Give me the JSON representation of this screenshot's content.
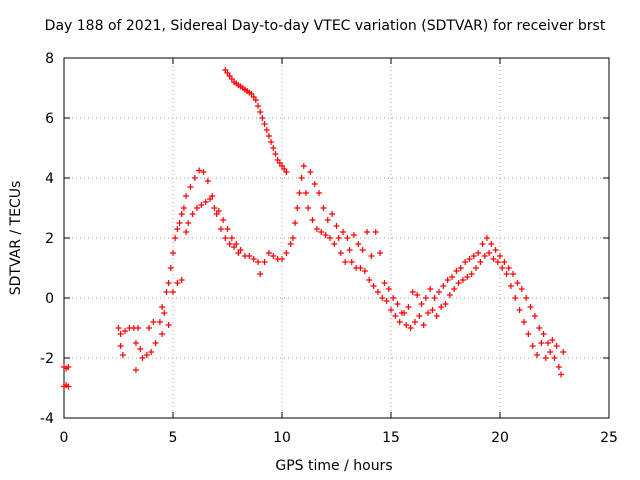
{
  "chart_data": {
    "type": "scatter",
    "title": "Day 188 of 2021, Sidereal Day-to-day VTEC variation (SDTVAR) for receiver brst",
    "xlabel": "GPS time / hours",
    "ylabel": "SDTVAR / TECUs",
    "xlim": [
      0,
      25
    ],
    "ylim": [
      -4,
      8
    ],
    "xticks": [
      "0",
      "5",
      "10",
      "15",
      "20",
      "25"
    ],
    "yticks": [
      "-4",
      "-2",
      "0",
      "2",
      "4",
      "6",
      "8"
    ],
    "grid": true,
    "marker": "+",
    "series_color": "#ff0000",
    "series": [
      {
        "name": "SDTVAR",
        "points": [
          [
            0.0,
            -2.3
          ],
          [
            0.1,
            -2.35
          ],
          [
            0.2,
            -2.3
          ],
          [
            0.0,
            -2.95
          ],
          [
            0.1,
            -2.9
          ],
          [
            0.2,
            -2.95
          ],
          [
            2.5,
            -1.0
          ],
          [
            2.6,
            -1.2
          ],
          [
            2.6,
            -1.6
          ],
          [
            2.7,
            -1.9
          ],
          [
            2.8,
            -1.1
          ],
          [
            3.0,
            -1.0
          ],
          [
            3.2,
            -1.0
          ],
          [
            3.3,
            -1.5
          ],
          [
            3.3,
            -2.4
          ],
          [
            3.4,
            -1.0
          ],
          [
            3.5,
            -1.7
          ],
          [
            3.6,
            -2.0
          ],
          [
            3.8,
            -1.9
          ],
          [
            3.9,
            -1.0
          ],
          [
            4.0,
            -1.8
          ],
          [
            4.1,
            -0.8
          ],
          [
            4.2,
            -1.5
          ],
          [
            4.4,
            -0.8
          ],
          [
            4.5,
            -0.3
          ],
          [
            4.5,
            -1.2
          ],
          [
            4.6,
            -0.5
          ],
          [
            4.7,
            0.2
          ],
          [
            4.8,
            -0.9
          ],
          [
            4.8,
            0.5
          ],
          [
            4.9,
            1.0
          ],
          [
            5.0,
            0.2
          ],
          [
            5.0,
            1.5
          ],
          [
            5.1,
            2.0
          ],
          [
            5.2,
            0.5
          ],
          [
            5.2,
            2.3
          ],
          [
            5.3,
            2.5
          ],
          [
            5.4,
            0.6
          ],
          [
            5.4,
            2.8
          ],
          [
            5.5,
            3.0
          ],
          [
            5.6,
            2.2
          ],
          [
            5.6,
            3.4
          ],
          [
            5.7,
            2.5
          ],
          [
            5.8,
            3.7
          ],
          [
            5.9,
            2.8
          ],
          [
            6.0,
            4.0
          ],
          [
            6.1,
            3.0
          ],
          [
            6.2,
            4.25
          ],
          [
            6.3,
            3.1
          ],
          [
            6.4,
            4.2
          ],
          [
            6.5,
            3.2
          ],
          [
            6.6,
            3.9
          ],
          [
            6.7,
            3.3
          ],
          [
            6.8,
            3.4
          ],
          [
            6.9,
            3.0
          ],
          [
            7.0,
            2.8
          ],
          [
            7.1,
            2.9
          ],
          [
            7.2,
            2.3
          ],
          [
            7.3,
            2.6
          ],
          [
            7.4,
            2.0
          ],
          [
            7.5,
            2.3
          ],
          [
            7.6,
            1.8
          ],
          [
            7.7,
            2.0
          ],
          [
            7.8,
            1.7
          ],
          [
            7.9,
            1.8
          ],
          [
            8.0,
            1.5
          ],
          [
            8.1,
            1.6
          ],
          [
            8.3,
            1.4
          ],
          [
            8.5,
            1.4
          ],
          [
            8.7,
            1.3
          ],
          [
            8.9,
            1.2
          ],
          [
            9.0,
            0.8
          ],
          [
            9.2,
            1.2
          ],
          [
            9.4,
            1.5
          ],
          [
            9.6,
            1.4
          ],
          [
            9.8,
            1.3
          ],
          [
            10.0,
            1.3
          ],
          [
            10.2,
            1.5
          ],
          [
            10.4,
            1.8
          ],
          [
            10.5,
            2.0
          ],
          [
            10.6,
            2.5
          ],
          [
            10.7,
            3.0
          ],
          [
            10.8,
            3.5
          ],
          [
            10.9,
            4.0
          ],
          [
            11.0,
            4.4
          ],
          [
            11.1,
            3.5
          ],
          [
            11.2,
            3.0
          ],
          [
            11.3,
            4.2
          ],
          [
            11.4,
            2.6
          ],
          [
            11.5,
            3.8
          ],
          [
            11.6,
            2.3
          ],
          [
            11.7,
            3.5
          ],
          [
            11.8,
            2.2
          ],
          [
            11.9,
            3.0
          ],
          [
            12.0,
            2.1
          ],
          [
            12.1,
            2.6
          ],
          [
            12.2,
            2.0
          ],
          [
            12.3,
            2.8
          ],
          [
            12.4,
            1.8
          ],
          [
            12.5,
            2.4
          ],
          [
            12.6,
            2.0
          ],
          [
            12.7,
            1.5
          ],
          [
            12.8,
            2.2
          ],
          [
            12.9,
            1.2
          ],
          [
            13.0,
            2.0
          ],
          [
            13.1,
            1.6
          ],
          [
            13.2,
            1.2
          ],
          [
            13.3,
            2.1
          ],
          [
            13.4,
            1.0
          ],
          [
            13.5,
            1.8
          ],
          [
            13.6,
            1.0
          ],
          [
            13.7,
            1.6
          ],
          [
            13.8,
            0.9
          ],
          [
            13.9,
            2.2
          ],
          [
            14.0,
            0.6
          ],
          [
            14.1,
            1.4
          ],
          [
            14.2,
            0.4
          ],
          [
            14.3,
            2.2
          ],
          [
            14.4,
            0.2
          ],
          [
            14.5,
            1.5
          ],
          [
            14.6,
            0.0
          ],
          [
            14.7,
            0.5
          ],
          [
            14.8,
            -0.1
          ],
          [
            14.9,
            0.3
          ],
          [
            15.0,
            -0.4
          ],
          [
            15.1,
            0.0
          ],
          [
            15.2,
            -0.6
          ],
          [
            15.3,
            -0.2
          ],
          [
            15.4,
            -0.8
          ],
          [
            15.5,
            -0.5
          ],
          [
            15.6,
            -0.5
          ],
          [
            15.7,
            -0.9
          ],
          [
            15.8,
            -0.3
          ],
          [
            15.9,
            -1.0
          ],
          [
            16.0,
            0.2
          ],
          [
            16.1,
            -0.8
          ],
          [
            16.2,
            0.1
          ],
          [
            16.3,
            -0.6
          ],
          [
            16.4,
            -0.2
          ],
          [
            16.5,
            -0.9
          ],
          [
            16.6,
            0.0
          ],
          [
            16.7,
            -0.5
          ],
          [
            16.8,
            0.3
          ],
          [
            16.9,
            -0.4
          ],
          [
            17.0,
            0.0
          ],
          [
            17.1,
            -0.6
          ],
          [
            17.2,
            0.2
          ],
          [
            17.3,
            -0.3
          ],
          [
            17.4,
            0.4
          ],
          [
            17.5,
            -0.2
          ],
          [
            17.6,
            0.6
          ],
          [
            17.7,
            0.1
          ],
          [
            17.8,
            0.7
          ],
          [
            17.9,
            0.3
          ],
          [
            18.0,
            0.9
          ],
          [
            18.1,
            0.5
          ],
          [
            18.2,
            1.0
          ],
          [
            18.3,
            0.6
          ],
          [
            18.4,
            1.2
          ],
          [
            18.5,
            0.7
          ],
          [
            18.6,
            1.3
          ],
          [
            18.7,
            0.8
          ],
          [
            18.8,
            1.4
          ],
          [
            18.9,
            1.0
          ],
          [
            19.0,
            1.5
          ],
          [
            19.1,
            1.2
          ],
          [
            19.2,
            1.8
          ],
          [
            19.3,
            1.4
          ],
          [
            19.4,
            2.0
          ],
          [
            19.5,
            1.5
          ],
          [
            19.6,
            1.8
          ],
          [
            19.7,
            1.3
          ],
          [
            19.8,
            1.6
          ],
          [
            19.9,
            1.2
          ],
          [
            20.0,
            1.4
          ],
          [
            20.1,
            1.0
          ],
          [
            20.2,
            1.2
          ],
          [
            20.3,
            0.8
          ],
          [
            20.4,
            1.0
          ],
          [
            20.5,
            0.4
          ],
          [
            20.6,
            0.8
          ],
          [
            20.7,
            0.0
          ],
          [
            20.8,
            0.5
          ],
          [
            20.9,
            -0.4
          ],
          [
            21.0,
            0.3
          ],
          [
            21.1,
            -0.8
          ],
          [
            21.2,
            0.0
          ],
          [
            21.3,
            -1.2
          ],
          [
            21.4,
            -0.3
          ],
          [
            21.5,
            -1.6
          ],
          [
            21.6,
            -0.6
          ],
          [
            21.7,
            -1.9
          ],
          [
            21.8,
            -1.0
          ],
          [
            21.9,
            -1.5
          ],
          [
            22.0,
            -1.2
          ],
          [
            22.1,
            -2.0
          ],
          [
            22.2,
            -1.5
          ],
          [
            22.3,
            -1.8
          ],
          [
            22.4,
            -1.4
          ],
          [
            22.5,
            -2.0
          ],
          [
            22.6,
            -1.6
          ],
          [
            22.7,
            -2.3
          ],
          [
            22.8,
            -2.55
          ],
          [
            22.9,
            -1.8
          ],
          [
            7.4,
            7.6
          ],
          [
            7.5,
            7.5
          ],
          [
            7.6,
            7.4
          ],
          [
            7.7,
            7.3
          ],
          [
            7.8,
            7.2
          ],
          [
            7.9,
            7.15
          ],
          [
            8.0,
            7.1
          ],
          [
            8.1,
            7.05
          ],
          [
            8.2,
            7.0
          ],
          [
            8.3,
            6.95
          ],
          [
            8.4,
            6.9
          ],
          [
            8.5,
            6.85
          ],
          [
            8.6,
            6.8
          ],
          [
            8.7,
            6.7
          ],
          [
            8.8,
            6.6
          ],
          [
            8.9,
            6.4
          ],
          [
            9.0,
            6.2
          ],
          [
            9.1,
            6.0
          ],
          [
            9.2,
            5.8
          ],
          [
            9.3,
            5.6
          ],
          [
            9.4,
            5.4
          ],
          [
            9.5,
            5.2
          ],
          [
            9.6,
            5.0
          ],
          [
            9.7,
            4.8
          ],
          [
            9.8,
            4.6
          ],
          [
            9.9,
            4.5
          ],
          [
            10.0,
            4.4
          ],
          [
            10.1,
            4.3
          ],
          [
            10.2,
            4.2
          ]
        ]
      }
    ]
  }
}
